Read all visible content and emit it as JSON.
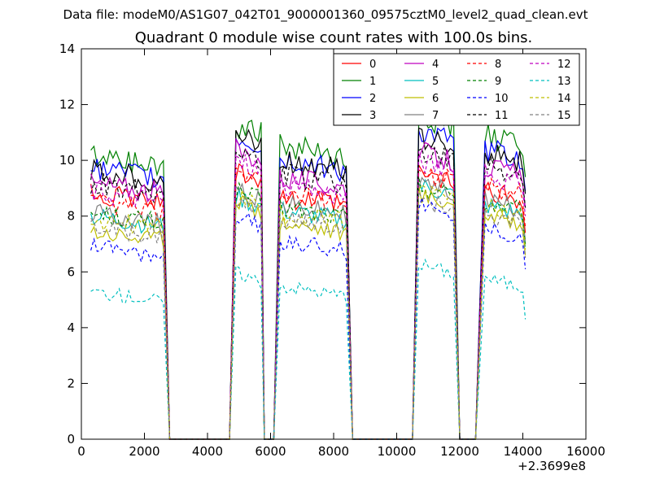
{
  "figure": {
    "suptitle": "Data file: modeM0/AS1G07_042T01_9000001360_09575cztM0_level2_quad_clean.evt"
  },
  "chart_data": {
    "type": "line",
    "title": "Quadrant 0 module wise count rates with 100.0s bins.",
    "xlabel": "",
    "ylabel": "",
    "x_offset_label": "+2.3699e8",
    "xlim": [
      0,
      16000
    ],
    "ylim": [
      0,
      14
    ],
    "x_ticks": [
      0,
      2000,
      4000,
      6000,
      8000,
      10000,
      12000,
      14000,
      16000
    ],
    "y_ticks": [
      0,
      2,
      4,
      6,
      8,
      10,
      12,
      14
    ],
    "x_tick_labels": [
      "0",
      "2000",
      "4000",
      "6000",
      "8000",
      "10000",
      "12000",
      "14000",
      "16000"
    ],
    "y_tick_labels": [
      "0",
      "2",
      "4",
      "6",
      "8",
      "10",
      "12",
      "14"
    ],
    "grid": false,
    "legend": {
      "position": "top-right",
      "columns": 4
    },
    "segments": [
      {
        "start": 300,
        "end": 2600,
        "steps": 23
      },
      {
        "start": 4900,
        "end": 5700,
        "steps": 8
      },
      {
        "start": 6300,
        "end": 8400,
        "steps": 21
      },
      {
        "start": 10700,
        "end": 11800,
        "steps": 11
      },
      {
        "start": 12800,
        "end": 14000,
        "steps": 12
      }
    ],
    "gaps": [
      {
        "start": 2800,
        "end": 4700
      },
      {
        "start": 5800,
        "end": 6100
      },
      {
        "start": 8600,
        "end": 10500
      },
      {
        "start": 12000,
        "end": 12500
      }
    ],
    "series": [
      {
        "name": "0",
        "color": "#ff0000",
        "dash": "solid",
        "levels": [
          8.8,
          9.7,
          8.7,
          9.5,
          8.9
        ]
      },
      {
        "name": "1",
        "color": "#008000",
        "dash": "solid",
        "levels": [
          10.2,
          11.3,
          10.5,
          11.6,
          10.9
        ]
      },
      {
        "name": "2",
        "color": "#0000ff",
        "dash": "solid",
        "levels": [
          9.7,
          10.8,
          10.0,
          11.0,
          10.4
        ]
      },
      {
        "name": "3",
        "color": "#000000",
        "dash": "solid",
        "levels": [
          9.6,
          10.9,
          10.0,
          10.8,
          10.3
        ]
      },
      {
        "name": "4",
        "color": "#bf00bf",
        "dash": "solid",
        "levels": [
          9.2,
          10.4,
          9.4,
          10.3,
          9.8
        ]
      },
      {
        "name": "5",
        "color": "#00bfbf",
        "dash": "solid",
        "levels": [
          8.0,
          8.7,
          8.2,
          9.1,
          8.4
        ]
      },
      {
        "name": "6",
        "color": "#bfbf00",
        "dash": "solid",
        "levels": [
          7.5,
          8.5,
          7.8,
          8.8,
          8.1
        ]
      },
      {
        "name": "7",
        "color": "#808080",
        "dash": "solid",
        "levels": [
          8.1,
          9.0,
          8.4,
          9.2,
          8.6
        ]
      },
      {
        "name": "8",
        "color": "#ff0000",
        "dash": "dashed",
        "levels": [
          8.5,
          9.5,
          8.8,
          9.6,
          9.1
        ]
      },
      {
        "name": "9",
        "color": "#008000",
        "dash": "dashed",
        "levels": [
          8.1,
          8.9,
          8.3,
          9.1,
          8.5
        ]
      },
      {
        "name": "10",
        "color": "#0000ff",
        "dash": "dashed",
        "levels": [
          6.9,
          8.0,
          7.1,
          8.4,
          7.6
        ]
      },
      {
        "name": "11",
        "color": "#000000",
        "dash": "dashed",
        "levels": [
          9.2,
          10.3,
          9.5,
          10.3,
          9.8
        ]
      },
      {
        "name": "12",
        "color": "#bf00bf",
        "dash": "dashed",
        "levels": [
          8.9,
          10.0,
          9.1,
          10.0,
          9.5
        ]
      },
      {
        "name": "13",
        "color": "#00bfbf",
        "dash": "dashed",
        "levels": [
          5.3,
          6.0,
          5.5,
          6.3,
          5.8
        ]
      },
      {
        "name": "14",
        "color": "#bfbf00",
        "dash": "dashed",
        "levels": [
          7.9,
          8.7,
          8.1,
          8.9,
          8.3
        ]
      },
      {
        "name": "15",
        "color": "#808080",
        "dash": "dashed",
        "levels": [
          7.6,
          8.5,
          7.9,
          8.6,
          8.0
        ]
      }
    ]
  }
}
